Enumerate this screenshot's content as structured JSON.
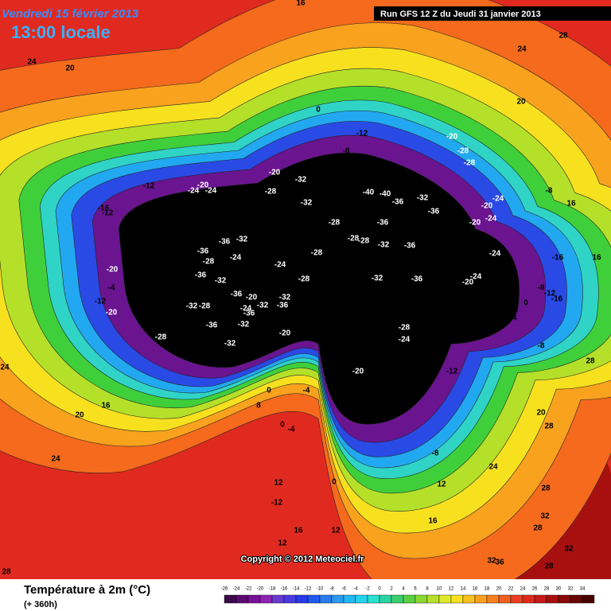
{
  "header": {
    "date": "Vendredi 15 février 2013",
    "time": "13:00 locale",
    "run": "Run GFS 12 Z du Jeudi 31 janvier 2013"
  },
  "copyright": "Copyright © 2012 Meteociel.fr",
  "footer": {
    "title": "Température à 2m (°C)",
    "lead": "(+ 360h)"
  },
  "scale": {
    "values": [
      -26,
      -24,
      -22,
      -20,
      -18,
      -16,
      -14,
      -12,
      -10,
      -8,
      -6,
      -4,
      -2,
      0,
      2,
      4,
      6,
      8,
      10,
      12,
      14,
      16,
      18,
      20,
      22,
      24,
      26,
      28,
      30,
      32,
      34
    ],
    "colors": [
      "#3a0a4a",
      "#5a0a6e",
      "#7a1096",
      "#8e22b4",
      "#6a3ad0",
      "#4a3ae0",
      "#2a3ae8",
      "#1f5af0",
      "#2a7af0",
      "#2a9af0",
      "#22b8f0",
      "#22d4f0",
      "#2ae0d0",
      "#2ad4a0",
      "#3ad070",
      "#5ad040",
      "#8ad830",
      "#b8e02a",
      "#e0e82a",
      "#f8e020",
      "#f8c020",
      "#f8a020",
      "#f88020",
      "#f06020",
      "#e84020",
      "#e02a1f",
      "#c81a1a",
      "#a81010",
      "#880808",
      "#680404",
      "#480000"
    ]
  },
  "labels": [
    "16",
    "28",
    "24",
    "20",
    "24",
    "20",
    "0",
    "-12",
    "-8",
    "-20",
    "-28",
    "-28",
    "-20",
    "-32",
    "-20",
    "-12",
    "-24",
    "-24",
    "-28",
    "-40",
    "-40",
    "-32",
    "-36",
    "-24",
    "-8",
    "16",
    "-16",
    "-12",
    "-12",
    "-16",
    "-32",
    "-36",
    "-20",
    "-24",
    "-28",
    "-36",
    "-20",
    "-28",
    "-28",
    "-32",
    "-36",
    "-36",
    "-32",
    "-8",
    "-36",
    "-24",
    "-28",
    "-28",
    "-24",
    "-24",
    "-16",
    "16",
    "-20",
    "-36",
    "-32",
    "-28",
    "-32",
    "-36",
    "-20",
    "-24",
    "-4",
    "-36",
    "-20",
    "-32",
    "-32",
    "-24",
    "-36",
    "-12",
    "-8",
    "-12",
    "-16",
    "-20",
    "-32",
    "-28",
    "-36",
    "-8",
    "-4",
    "0",
    "-4",
    "-36",
    "-32",
    "-28",
    "-24",
    "-28",
    "-32",
    "-20",
    "0",
    "0",
    "-8",
    "24",
    "28",
    "-16",
    "-20",
    "-12",
    "0",
    "-4",
    "8",
    "16",
    "20",
    "20",
    "28",
    "0",
    "-4",
    "-8",
    "24",
    "24",
    "12",
    "0",
    "12",
    "-12",
    "28",
    "32",
    "16",
    "12",
    "16",
    "28",
    "32",
    "12",
    "28",
    "32",
    "36",
    "28"
  ]
}
